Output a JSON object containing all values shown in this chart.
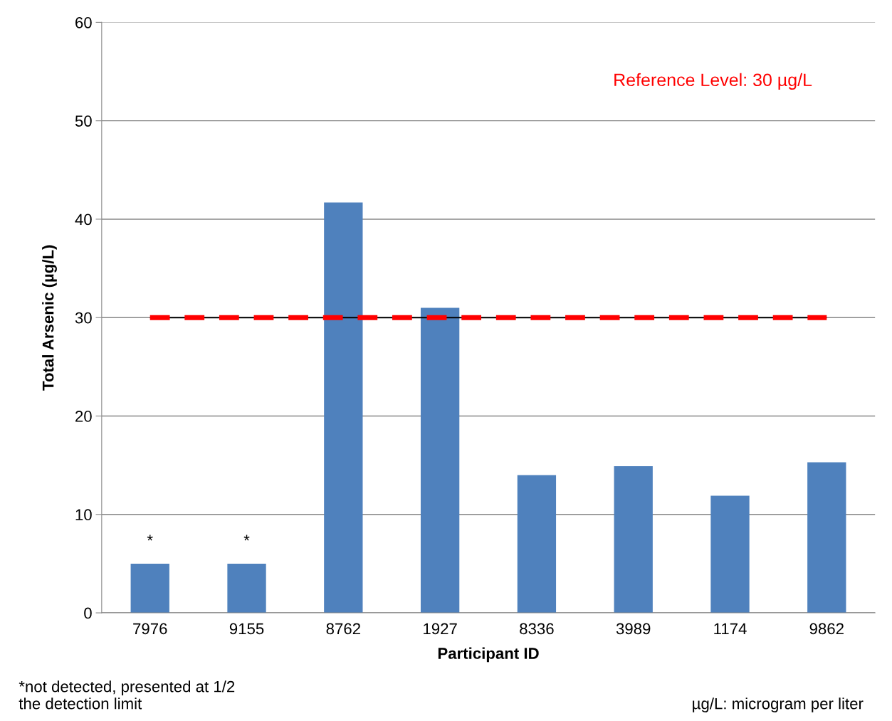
{
  "chart_data": {
    "type": "bar",
    "xlabel": "Participant ID",
    "ylabel": "Total Arsenic (µg/L)",
    "categories": [
      "7976",
      "9155",
      "8762",
      "1927",
      "8336",
      "3989",
      "1174",
      "9862"
    ],
    "values": [
      5,
      5,
      41.7,
      31.0,
      14.0,
      14.9,
      11.9,
      15.3
    ],
    "color": "#4f81bd",
    "ylim": [
      0,
      60
    ],
    "yticks": [
      0,
      10,
      20,
      30,
      40,
      50,
      60
    ],
    "grid": "y",
    "ref_lines": [
      {
        "axis": "y",
        "value": 30,
        "color": "#000000",
        "line_style": "solid"
      },
      {
        "axis": "y",
        "value": 30,
        "label": "Reference Level: 30 µg/L",
        "color": "#ff0000",
        "line_style": "dashed"
      }
    ],
    "annotations": [
      {
        "text": "*",
        "x": "7976",
        "y": 5
      },
      {
        "text": "*",
        "x": "9155",
        "y": 5
      },
      "*not detected, presented at 1/2\nthe detection limit",
      "µg/L: microgram per liter"
    ]
  }
}
